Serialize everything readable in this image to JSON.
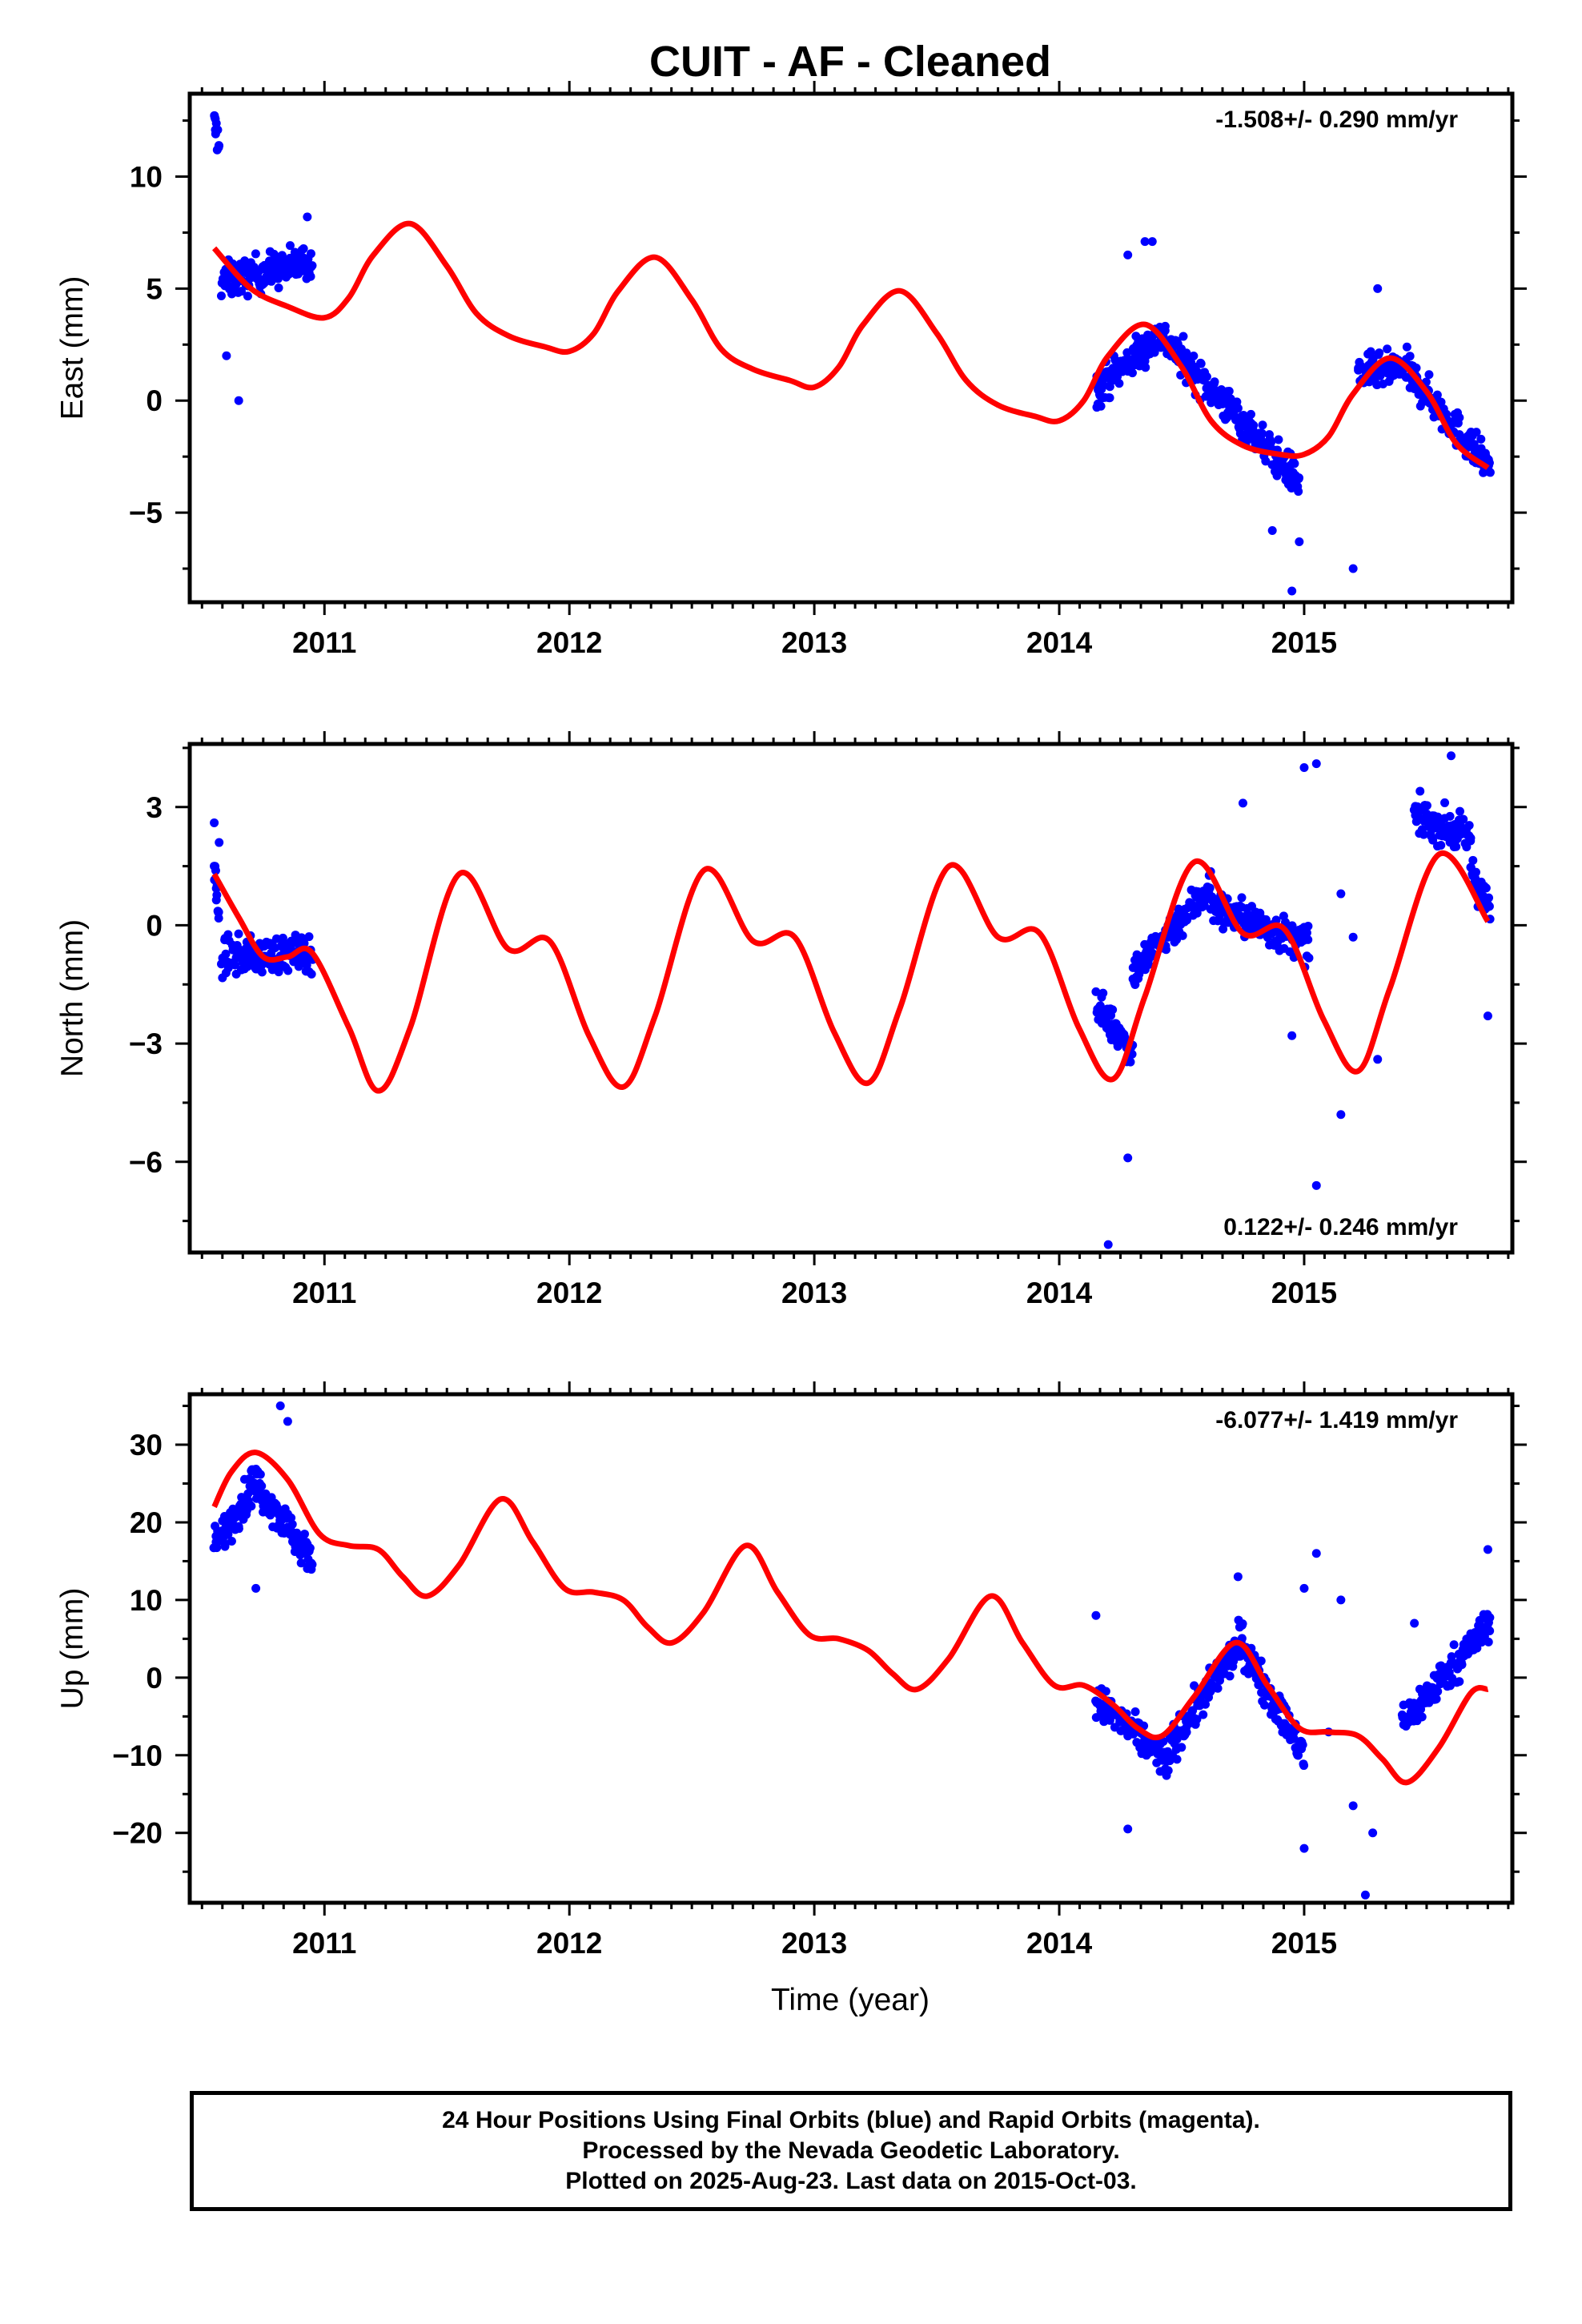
{
  "title": "CUIT  - AF - Cleaned",
  "xlabel": "Time (year)",
  "footer": {
    "line1": "24 Hour Positions Using Final Orbits (blue) and Rapid Orbits (magenta).",
    "line2": "Processed by the Nevada Geodetic Laboratory.",
    "line3": "Plotted on 2025-Aug-23. Last data on 2015-Oct-03."
  },
  "colors": {
    "data": "#0000ff",
    "model": "#ff0000",
    "frame": "#000000"
  },
  "chart_data": [
    {
      "type": "scatter",
      "ylabel": "East (mm)",
      "rate": "-1.508+/- 0.290 mm/yr",
      "rate_position": "top-right",
      "xlim": [
        2010.45,
        2015.85
      ],
      "ylim": [
        -9,
        13.7
      ],
      "yticks": [
        -5,
        0,
        5,
        10
      ],
      "yticklabels": [
        "−5",
        "0",
        "5",
        "10"
      ],
      "xticks": [
        2011,
        2012,
        2013,
        2014,
        2015
      ],
      "xticklabels": [
        "2011",
        "2012",
        "2013",
        "2014",
        "2015"
      ],
      "grid": false,
      "series": [
        {
          "role": "observations",
          "color": "#0000ff",
          "segments": [
            {
              "x": [
                2010.55,
                2010.57
              ],
              "y": [
                12.3,
                11.5
              ]
            },
            {
              "x": [
                2010.58,
                2010.95
              ],
              "y": [
                5.3,
                6.2
              ]
            },
            {
              "x": [
                2014.15,
                2014.42
              ],
              "y": [
                0.5,
                3.0
              ]
            },
            {
              "x": [
                2014.42,
                2014.98
              ],
              "y": [
                2.8,
                -3.6
              ]
            },
            {
              "x": [
                2015.22,
                2015.42
              ],
              "y": [
                1.2,
                1.4
              ]
            },
            {
              "x": [
                2015.42,
                2015.76
              ],
              "y": [
                1.3,
                -3.0
              ]
            }
          ],
          "outliers": [
            [
              2010.65,
              0.0
            ],
            [
              2010.6,
              2.0
            ],
            [
              2014.95,
              -8.5
            ],
            [
              2015.2,
              -7.5
            ],
            [
              2015.3,
              5.0
            ],
            [
              2014.28,
              6.5
            ],
            [
              2014.35,
              7.1
            ],
            [
              2014.38,
              7.1
            ],
            [
              2010.93,
              8.2
            ],
            [
              2014.98,
              -6.3
            ],
            [
              2014.87,
              -5.8
            ]
          ]
        },
        {
          "role": "model",
          "color": "#ff0000",
          "x": [
            2010.55,
            2010.7,
            2010.85,
            2011.0,
            2011.1,
            2011.2,
            2011.35,
            2011.5,
            2011.62,
            2011.75,
            2011.9,
            2012.0,
            2012.1,
            2012.2,
            2012.35,
            2012.5,
            2012.62,
            2012.75,
            2012.9,
            2013.0,
            2013.1,
            2013.2,
            2013.35,
            2013.5,
            2013.62,
            2013.75,
            2013.9,
            2014.0,
            2014.1,
            2014.2,
            2014.35,
            2014.5,
            2014.62,
            2014.75,
            2014.9,
            2015.0,
            2015.1,
            2015.2,
            2015.35,
            2015.5,
            2015.62,
            2015.75
          ],
          "y": [
            6.8,
            5.0,
            4.2,
            3.7,
            4.6,
            6.5,
            7.9,
            6.0,
            3.9,
            2.9,
            2.4,
            2.2,
            3.0,
            4.9,
            6.4,
            4.5,
            2.3,
            1.4,
            0.9,
            0.6,
            1.5,
            3.4,
            4.9,
            3.0,
            0.9,
            -0.2,
            -0.7,
            -0.9,
            0.0,
            2.0,
            3.4,
            1.5,
            -0.9,
            -2.0,
            -2.4,
            -2.4,
            -1.6,
            0.3,
            1.9,
            0.4,
            -1.9,
            -3.0
          ]
        }
      ]
    },
    {
      "type": "scatter",
      "ylabel": "North (mm)",
      "rate": "0.122+/- 0.246 mm/yr",
      "rate_position": "bottom-right",
      "xlim": [
        2010.45,
        2015.85
      ],
      "ylim": [
        -8.3,
        4.6
      ],
      "yticks": [
        -6,
        -3,
        0,
        3
      ],
      "yticklabels": [
        "−6",
        "−3",
        "0",
        "3"
      ],
      "xticks": [
        2011,
        2012,
        2013,
        2014,
        2015
      ],
      "xticklabels": [
        "2011",
        "2012",
        "2013",
        "2014",
        "2015"
      ],
      "grid": false,
      "series": [
        {
          "role": "observations",
          "color": "#0000ff",
          "segments": [
            {
              "x": [
                2010.55,
                2010.57
              ],
              "y": [
                1.5,
                0.0
              ]
            },
            {
              "x": [
                2010.58,
                2010.95
              ],
              "y": [
                -0.8,
                -0.7
              ]
            },
            {
              "x": [
                2014.15,
                2014.3
              ],
              "y": [
                -2.0,
                -3.2
              ]
            },
            {
              "x": [
                2014.3,
                2014.62
              ],
              "y": [
                -1.2,
                1.0
              ]
            },
            {
              "x": [
                2014.62,
                2015.02
              ],
              "y": [
                0.5,
                -0.5
              ]
            },
            {
              "x": [
                2015.45,
                2015.68
              ],
              "y": [
                2.8,
                2.2
              ]
            },
            {
              "x": [
                2015.68,
                2015.76
              ],
              "y": [
                1.5,
                0.3
              ]
            }
          ],
          "outliers": [
            [
              2010.55,
              2.6
            ],
            [
              2010.57,
              2.1
            ],
            [
              2014.2,
              -8.1
            ],
            [
              2015.05,
              -6.6
            ],
            [
              2015.05,
              4.1
            ],
            [
              2015.6,
              4.3
            ],
            [
              2015.15,
              -4.8
            ],
            [
              2014.28,
              -5.9
            ],
            [
              2015.3,
              -3.4
            ],
            [
              2015.15,
              0.8
            ],
            [
              2015.2,
              -0.3
            ],
            [
              2014.75,
              3.1
            ],
            [
              2015.0,
              4.0
            ],
            [
              2014.95,
              -2.8
            ],
            [
              2015.75,
              -2.3
            ]
          ]
        },
        {
          "role": "model",
          "color": "#ff0000",
          "x": [
            2010.55,
            2010.65,
            2010.75,
            2010.85,
            2010.95,
            2011.1,
            2011.22,
            2011.35,
            2011.55,
            2011.75,
            2011.92,
            2012.08,
            2012.22,
            2012.35,
            2012.55,
            2012.75,
            2012.92,
            2013.08,
            2013.22,
            2013.35,
            2013.55,
            2013.75,
            2013.92,
            2014.08,
            2014.22,
            2014.35,
            2014.55,
            2014.75,
            2014.92,
            2015.08,
            2015.22,
            2015.35,
            2015.55,
            2015.75
          ],
          "y": [
            1.3,
            0.2,
            -0.8,
            -0.8,
            -0.7,
            -2.6,
            -4.2,
            -2.6,
            1.3,
            -0.6,
            -0.4,
            -2.8,
            -4.1,
            -2.3,
            1.4,
            -0.4,
            -0.3,
            -2.7,
            -4.0,
            -2.1,
            1.5,
            -0.3,
            -0.2,
            -2.6,
            -3.9,
            -1.8,
            1.6,
            -0.2,
            -0.1,
            -2.4,
            -3.7,
            -1.6,
            1.8,
            0.1
          ]
        }
      ]
    },
    {
      "type": "scatter",
      "ylabel": "Up (mm)",
      "rate": "-6.077+/- 1.419 mm/yr",
      "rate_position": "top-right",
      "xlim": [
        2010.45,
        2015.85
      ],
      "ylim": [
        -29,
        36.5
      ],
      "yticks": [
        -20,
        -10,
        0,
        10,
        20,
        30
      ],
      "yticklabels": [
        "−20",
        "−10",
        "0",
        "10",
        "20",
        "30"
      ],
      "xticks": [
        2011,
        2012,
        2013,
        2014,
        2015
      ],
      "xticklabels": [
        "2011",
        "2012",
        "2013",
        "2014",
        "2015"
      ],
      "grid": false,
      "series": [
        {
          "role": "observations",
          "color": "#0000ff",
          "segments": [
            {
              "x": [
                2010.55,
                2010.7
              ],
              "y": [
                17.0,
                24.0
              ]
            },
            {
              "x": [
                2010.7,
                2010.95
              ],
              "y": [
                26.0,
                15.0
              ]
            },
            {
              "x": [
                2014.15,
                2014.45
              ],
              "y": [
                -3.0,
                -11.0
              ]
            },
            {
              "x": [
                2014.45,
                2014.75
              ],
              "y": [
                -9.0,
                5.0
              ]
            },
            {
              "x": [
                2014.75,
                2015.0
              ],
              "y": [
                4.0,
                -10.0
              ]
            },
            {
              "x": [
                2015.4,
                2015.76
              ],
              "y": [
                -6.0,
                7.0
              ]
            }
          ],
          "outliers": [
            [
              2010.82,
              35.0
            ],
            [
              2010.85,
              33.0
            ],
            [
              2010.72,
              11.5
            ],
            [
              2014.28,
              -19.5
            ],
            [
              2015.0,
              -22.0
            ],
            [
              2015.25,
              -28.0
            ],
            [
              2015.28,
              -20.0
            ],
            [
              2015.05,
              16.0
            ],
            [
              2015.0,
              11.5
            ],
            [
              2015.15,
              10.0
            ],
            [
              2014.73,
              13.0
            ],
            [
              2015.45,
              7.0
            ],
            [
              2015.75,
              16.5
            ],
            [
              2014.15,
              8.0
            ],
            [
              2015.2,
              -16.5
            ],
            [
              2015.1,
              -7.0
            ]
          ]
        },
        {
          "role": "model",
          "color": "#ff0000",
          "x": [
            2010.55,
            2010.62,
            2010.72,
            2010.85,
            2010.98,
            2011.1,
            2011.22,
            2011.32,
            2011.42,
            2011.55,
            2011.72,
            2011.85,
            2011.98,
            2012.1,
            2012.22,
            2012.32,
            2012.42,
            2012.55,
            2012.72,
            2012.85,
            2012.98,
            2013.1,
            2013.22,
            2013.32,
            2013.42,
            2013.55,
            2013.72,
            2013.85,
            2013.98,
            2014.1,
            2014.22,
            2014.32,
            2014.42,
            2014.55,
            2014.72,
            2014.85,
            2014.98,
            2015.1,
            2015.22,
            2015.32,
            2015.42,
            2015.55,
            2015.68,
            2015.75
          ],
          "y": [
            22.0,
            26.5,
            29.0,
            25.5,
            18.5,
            17.0,
            16.5,
            13.0,
            10.5,
            14.5,
            23.0,
            17.5,
            11.5,
            11.0,
            10.0,
            6.5,
            4.5,
            8.5,
            17.0,
            11.0,
            5.5,
            5.0,
            3.5,
            0.5,
            -1.5,
            2.5,
            10.5,
            4.5,
            -1.0,
            -1.0,
            -3.5,
            -6.5,
            -7.5,
            -2.5,
            4.5,
            -1.0,
            -6.5,
            -7.0,
            -7.5,
            -10.5,
            -13.5,
            -9.0,
            -2.0,
            -1.5
          ]
        }
      ]
    }
  ]
}
